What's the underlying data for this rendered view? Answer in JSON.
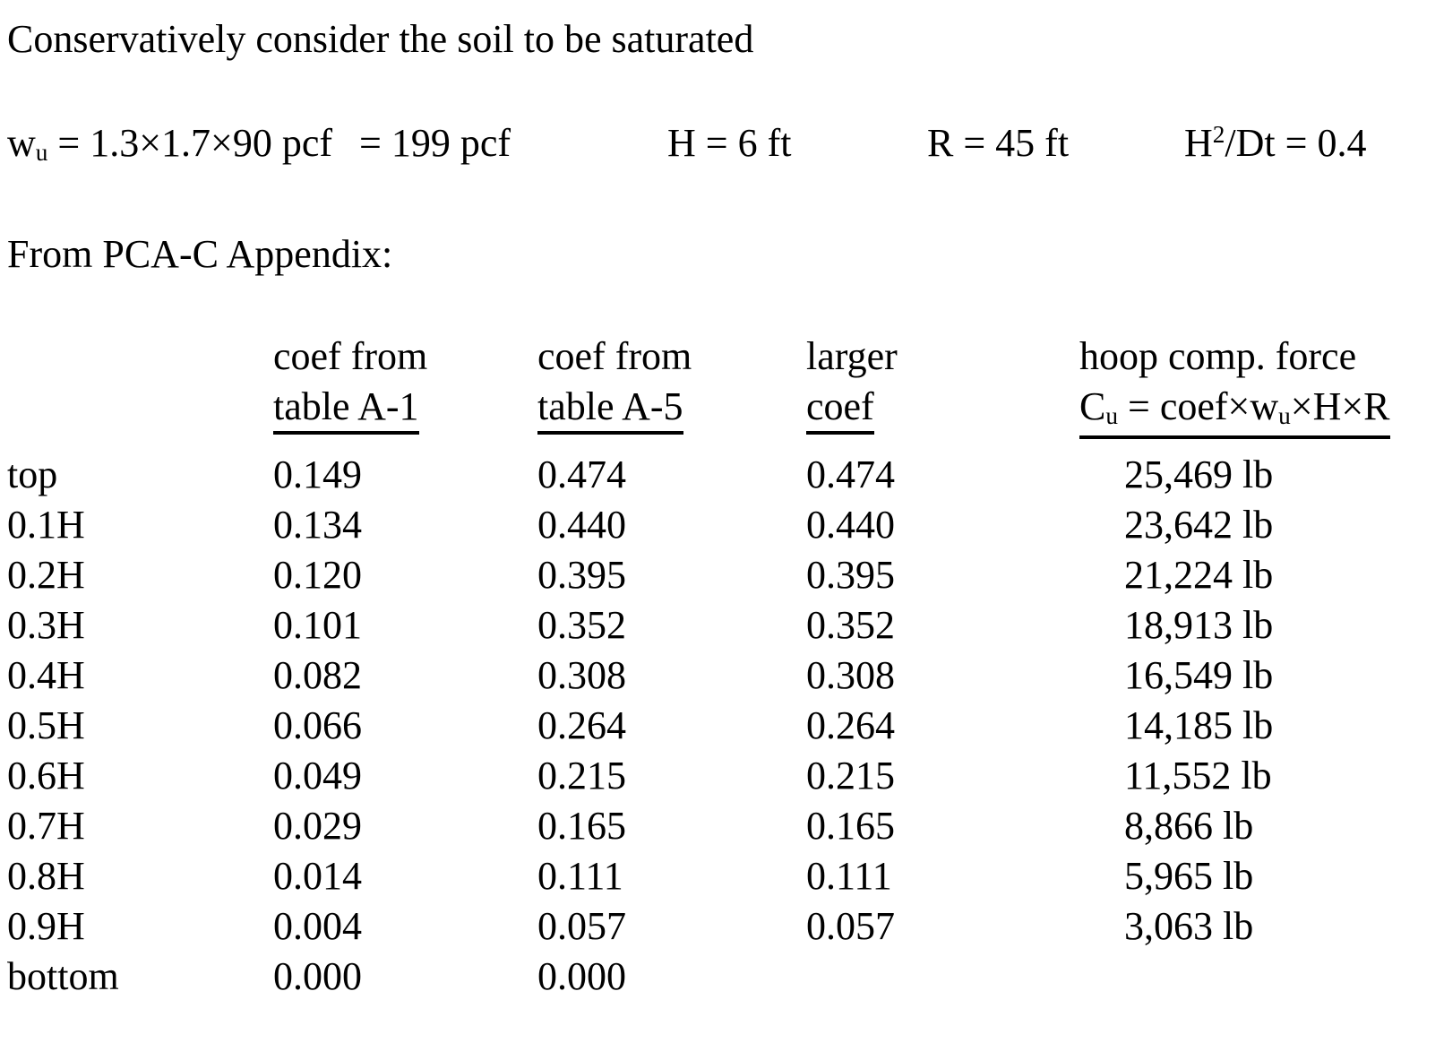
{
  "doc": {
    "statement": "Conservatively consider the soil to be saturated",
    "appendix": "From PCA-C Appendix:",
    "params": {
      "wu": {
        "var": "w",
        "var_sub": "u",
        "expression": " = 1.3×1.7×90 pcf",
        "result": "= 199 pcf"
      },
      "H": "H = 6 ft",
      "R": "R = 45 ft",
      "HDt": {
        "base": "H",
        "sup": "2",
        "rest": "/Dt = 0.4"
      }
    }
  },
  "table": {
    "headers": {
      "a1": {
        "line1": "coef from",
        "line2": "table A-1"
      },
      "a5": {
        "line1": "coef from",
        "line2": "table A-5"
      },
      "larger": {
        "line1": "larger",
        "line2": "coef"
      },
      "force": {
        "line1": "hoop comp. force",
        "formula": {
          "p1": "C",
          "p1sub": "u",
          "p2": " = coef×w",
          "p2sub": "u",
          "p3": "×H×R"
        }
      }
    },
    "rows": [
      {
        "label": "top",
        "coef_a1": "0.149",
        "coef_a5": "0.474",
        "larger_coef": "0.474",
        "force": "25,469 lb"
      },
      {
        "label": "0.1H",
        "coef_a1": "0.134",
        "coef_a5": "0.440",
        "larger_coef": "0.440",
        "force": "23,642 lb"
      },
      {
        "label": "0.2H",
        "coef_a1": "0.120",
        "coef_a5": "0.395",
        "larger_coef": "0.395",
        "force": "21,224 lb"
      },
      {
        "label": "0.3H",
        "coef_a1": "0.101",
        "coef_a5": "0.352",
        "larger_coef": "0.352",
        "force": "18,913 lb"
      },
      {
        "label": "0.4H",
        "coef_a1": "0.082",
        "coef_a5": "0.308",
        "larger_coef": "0.308",
        "force": "16,549 lb"
      },
      {
        "label": "0.5H",
        "coef_a1": "0.066",
        "coef_a5": "0.264",
        "larger_coef": "0.264",
        "force": "14,185 lb"
      },
      {
        "label": "0.6H",
        "coef_a1": "0.049",
        "coef_a5": "0.215",
        "larger_coef": "0.215",
        "force": "11,552 lb"
      },
      {
        "label": "0.7H",
        "coef_a1": "0.029",
        "coef_a5": "0.165",
        "larger_coef": "0.165",
        "force": "8,866 lb"
      },
      {
        "label": "0.8H",
        "coef_a1": "0.014",
        "coef_a5": "0.111",
        "larger_coef": "0.111",
        "force": "5,965 lb"
      },
      {
        "label": "0.9H",
        "coef_a1": "0.004",
        "coef_a5": "0.057",
        "larger_coef": "0.057",
        "force": "3,063 lb"
      },
      {
        "label": "bottom",
        "coef_a1": "0.000",
        "coef_a5": "0.000",
        "larger_coef": "",
        "force": ""
      }
    ]
  },
  "colors": {
    "text": "#000000",
    "background": "#ffffff"
  }
}
